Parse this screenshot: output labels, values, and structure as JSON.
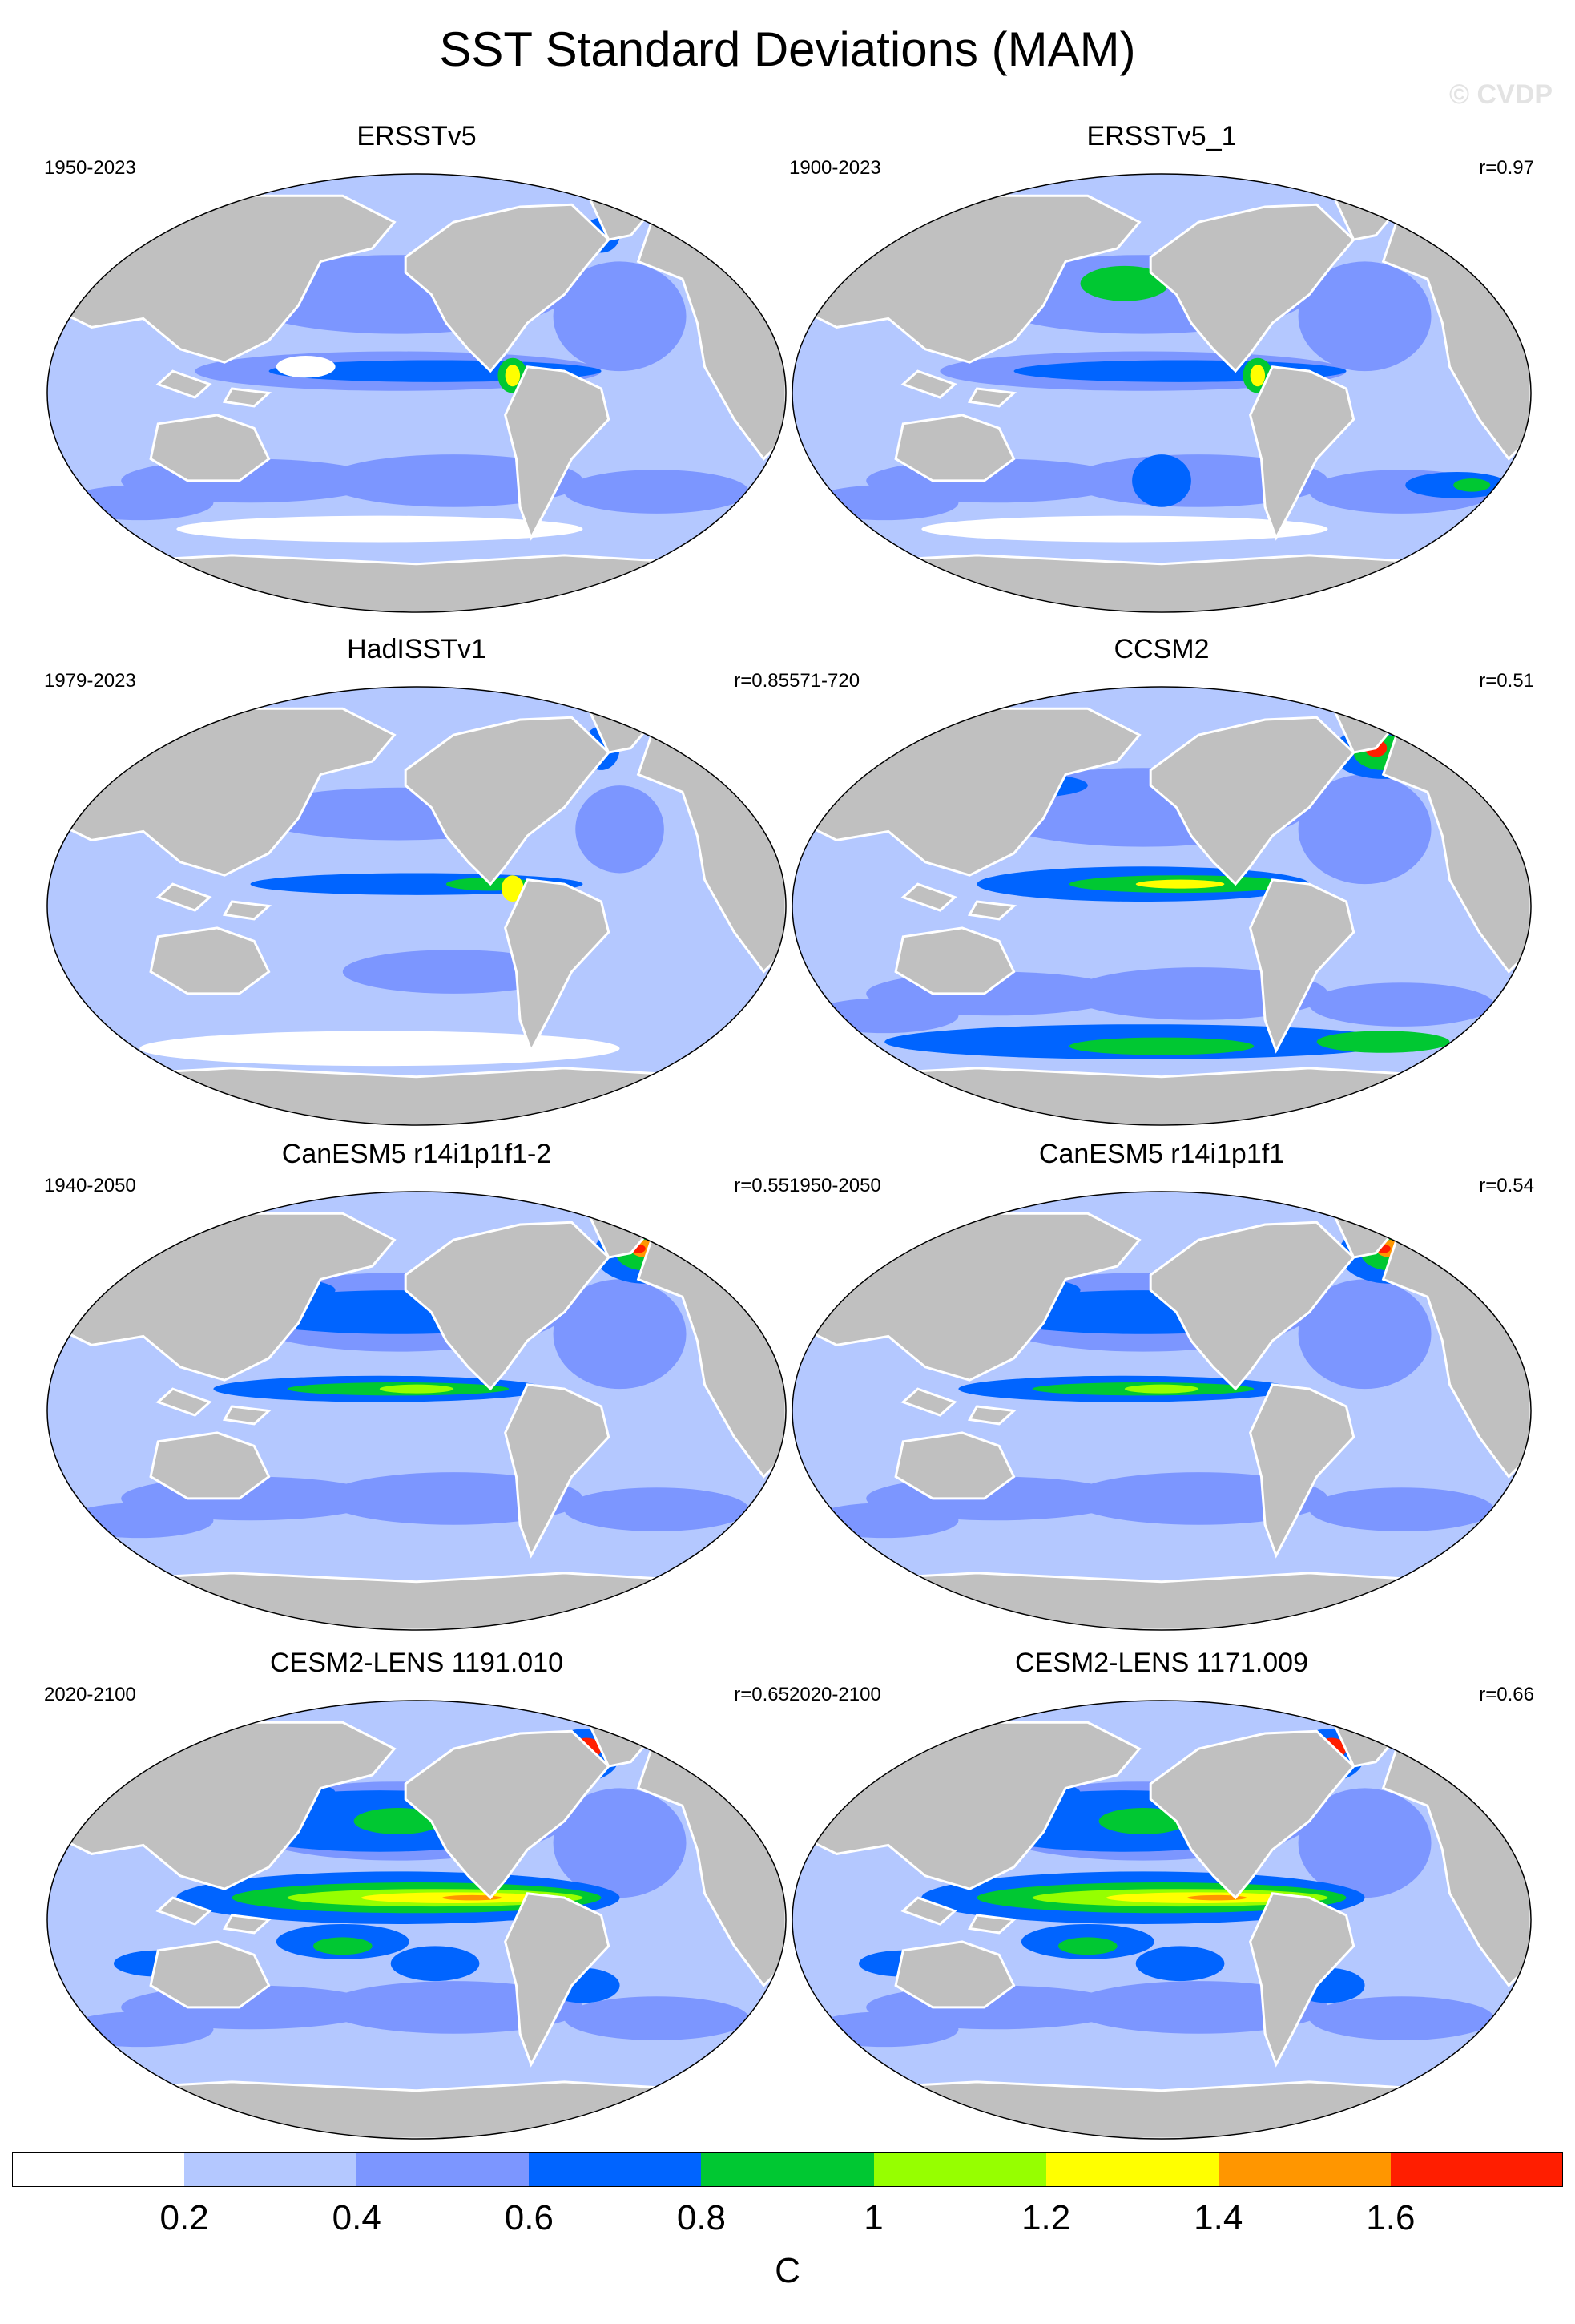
{
  "title": "SST Standard Deviations (MAM)",
  "watermark": "© CVDP",
  "panels": [
    {
      "title": "ERSSTv5",
      "years": "1950-2023",
      "r": "",
      "style": "obs"
    },
    {
      "title": "ERSSTv5_1",
      "years": "1900-2023",
      "r": "r=0.97",
      "style": "obs2"
    },
    {
      "title": "HadISSTv1",
      "years": "1979-2023",
      "r": "r=0.85",
      "style": "had"
    },
    {
      "title": "CCSM2",
      "years": "571-720",
      "r": "r=0.51",
      "style": "ccsm"
    },
    {
      "title": "CanESM5 r14i1p1f1-2",
      "years": "1940-2050",
      "r": "r=0.55",
      "style": "can"
    },
    {
      "title": "CanESM5 r14i1p1f1",
      "years": "1950-2050",
      "r": "r=0.54",
      "style": "can"
    },
    {
      "title": "CESM2-LENS 1191.010",
      "years": "2020-2100",
      "r": "r=0.65",
      "style": "cesm"
    },
    {
      "title": "CESM2-LENS 1171.009",
      "years": "2020-2100",
      "r": "r=0.66",
      "style": "cesm"
    }
  ],
  "colorbar": {
    "unit": "C",
    "labels": [
      "0.2",
      "0.4",
      "0.6",
      "0.8",
      "1",
      "1.2",
      "1.4",
      "1.6"
    ],
    "colors": [
      "#ffffff",
      "#b4c8ff",
      "#7c96ff",
      "#0064ff",
      "#00c832",
      "#96ff00",
      "#ffff00",
      "#ff9600",
      "#ff1e00"
    ]
  },
  "colors": {
    "land": "#c0c0c0",
    "ocean_base": "#b4c8ff",
    "outline": "#000000"
  }
}
